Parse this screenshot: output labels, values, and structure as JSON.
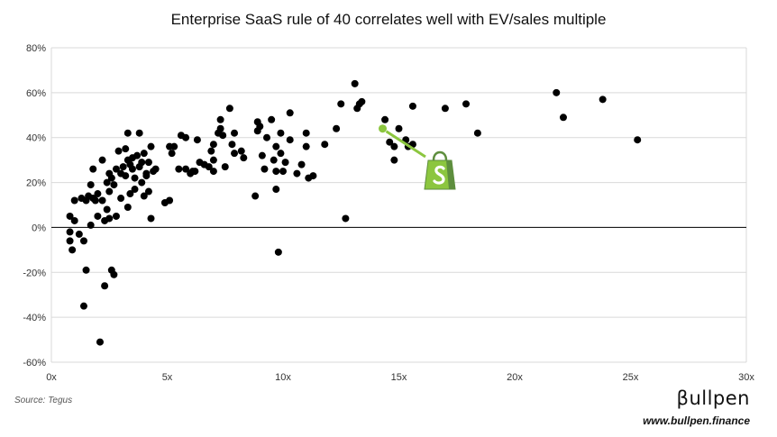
{
  "chart_data": {
    "type": "scatter",
    "title": "Enterprise SaaS rule of 40 correlates well with EV/sales multiple",
    "xlabel": "",
    "ylabel": "",
    "xlim": [
      0,
      30
    ],
    "ylim": [
      -60,
      80
    ],
    "x_ticks": [
      0,
      5,
      10,
      15,
      20,
      25,
      30
    ],
    "x_tick_labels": [
      "0x",
      "5x",
      "10x",
      "15x",
      "20x",
      "25x",
      "30x"
    ],
    "y_ticks": [
      80,
      60,
      40,
      20,
      0,
      -20,
      -40,
      -60
    ],
    "y_tick_labels": [
      "80%",
      "60%",
      "40%",
      "20%",
      "0%",
      "-20%",
      "-40%",
      "-60%"
    ],
    "grid": "horizontal",
    "legend": "none",
    "point_color": "#000000",
    "highlight_color": "#8cc63f",
    "points": [
      [
        0.8,
        5
      ],
      [
        0.8,
        -2
      ],
      [
        0.8,
        -6
      ],
      [
        0.9,
        -10
      ],
      [
        1.0,
        12
      ],
      [
        1.0,
        3
      ],
      [
        1.2,
        -3
      ],
      [
        1.3,
        13
      ],
      [
        1.4,
        -6
      ],
      [
        1.5,
        12
      ],
      [
        1.5,
        -19
      ],
      [
        1.4,
        -35
      ],
      [
        1.6,
        14
      ],
      [
        1.7,
        19
      ],
      [
        1.7,
        1
      ],
      [
        1.8,
        13
      ],
      [
        1.8,
        26
      ],
      [
        1.9,
        12
      ],
      [
        2.0,
        5
      ],
      [
        2.0,
        15
      ],
      [
        2.1,
        -51
      ],
      [
        2.2,
        30
      ],
      [
        2.2,
        12
      ],
      [
        2.3,
        -26
      ],
      [
        2.3,
        3
      ],
      [
        2.4,
        20
      ],
      [
        2.4,
        8
      ],
      [
        2.5,
        24
      ],
      [
        2.5,
        16
      ],
      [
        2.5,
        4
      ],
      [
        2.6,
        -19
      ],
      [
        2.6,
        22
      ],
      [
        2.7,
        19
      ],
      [
        2.7,
        -21
      ],
      [
        2.8,
        26
      ],
      [
        2.8,
        5
      ],
      [
        2.9,
        34
      ],
      [
        3.0,
        24
      ],
      [
        3.0,
        13
      ],
      [
        3.1,
        27
      ],
      [
        3.2,
        23
      ],
      [
        3.2,
        35
      ],
      [
        3.3,
        30
      ],
      [
        3.3,
        42
      ],
      [
        3.3,
        9
      ],
      [
        3.4,
        15
      ],
      [
        3.4,
        28
      ],
      [
        3.5,
        26
      ],
      [
        3.5,
        31
      ],
      [
        3.6,
        22
      ],
      [
        3.6,
        17
      ],
      [
        3.7,
        32
      ],
      [
        3.8,
        42
      ],
      [
        3.8,
        27
      ],
      [
        3.9,
        29
      ],
      [
        3.9,
        20
      ],
      [
        4.0,
        14
      ],
      [
        4.0,
        33
      ],
      [
        4.1,
        24
      ],
      [
        4.1,
        23
      ],
      [
        4.2,
        29
      ],
      [
        4.2,
        16
      ],
      [
        4.3,
        36
      ],
      [
        4.3,
        4
      ],
      [
        4.4,
        25
      ],
      [
        4.5,
        26
      ],
      [
        4.9,
        11
      ],
      [
        5.1,
        12
      ],
      [
        5.1,
        36
      ],
      [
        5.2,
        33
      ],
      [
        5.3,
        36
      ],
      [
        5.5,
        26
      ],
      [
        5.6,
        41
      ],
      [
        5.8,
        40
      ],
      [
        5.8,
        26
      ],
      [
        6.0,
        24
      ],
      [
        6.1,
        25
      ],
      [
        6.2,
        25
      ],
      [
        6.3,
        39
      ],
      [
        6.4,
        29
      ],
      [
        6.6,
        28
      ],
      [
        6.8,
        27
      ],
      [
        6.9,
        34
      ],
      [
        7.0,
        30
      ],
      [
        7.0,
        37
      ],
      [
        7.0,
        25
      ],
      [
        7.2,
        42
      ],
      [
        7.3,
        48
      ],
      [
        7.3,
        44
      ],
      [
        7.4,
        41
      ],
      [
        7.5,
        27
      ],
      [
        7.7,
        53
      ],
      [
        7.8,
        37
      ],
      [
        7.9,
        42
      ],
      [
        7.9,
        33
      ],
      [
        8.2,
        34
      ],
      [
        8.3,
        31
      ],
      [
        8.8,
        14
      ],
      [
        8.9,
        47
      ],
      [
        8.9,
        43
      ],
      [
        9.0,
        45
      ],
      [
        9.1,
        32
      ],
      [
        9.2,
        26
      ],
      [
        9.3,
        40
      ],
      [
        9.5,
        48
      ],
      [
        9.6,
        30
      ],
      [
        9.7,
        36
      ],
      [
        9.7,
        17
      ],
      [
        9.7,
        25
      ],
      [
        9.8,
        -11
      ],
      [
        9.9,
        33
      ],
      [
        9.9,
        42
      ],
      [
        10.0,
        25
      ],
      [
        10.1,
        29
      ],
      [
        10.3,
        39
      ],
      [
        10.3,
        51
      ],
      [
        10.6,
        24
      ],
      [
        10.8,
        28
      ],
      [
        11.0,
        36
      ],
      [
        11.0,
        42
      ],
      [
        11.1,
        22
      ],
      [
        11.3,
        23
      ],
      [
        11.8,
        37
      ],
      [
        12.3,
        44
      ],
      [
        12.5,
        55
      ],
      [
        12.7,
        4
      ],
      [
        13.1,
        64
      ],
      [
        13.2,
        53
      ],
      [
        13.3,
        55
      ],
      [
        13.4,
        56
      ],
      [
        14.6,
        38
      ],
      [
        14.8,
        30
      ],
      [
        14.8,
        36
      ],
      [
        15.0,
        44
      ],
      [
        15.3,
        39
      ],
      [
        15.4,
        36
      ],
      [
        15.6,
        54
      ],
      [
        15.6,
        37
      ],
      [
        17.0,
        53
      ],
      [
        17.9,
        55
      ],
      [
        18.4,
        42
      ],
      [
        21.8,
        60
      ],
      [
        22.1,
        49
      ],
      [
        23.8,
        57
      ],
      [
        25.3,
        39
      ],
      [
        14.4,
        48
      ]
    ],
    "highlight_point": [
      14.3,
      44
    ]
  },
  "labels": {
    "source": "Source: Tegus",
    "brand_logo": "βullpen",
    "brand_url": "www.bullpen.finance",
    "shopify_icon": "shopify-bag-icon"
  }
}
